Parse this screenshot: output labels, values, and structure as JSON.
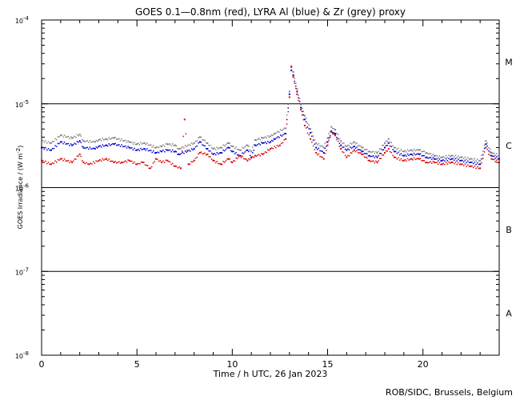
{
  "chart_data": {
    "type": "scatter",
    "title": "GOES 0.1—0.8nm (red), LYRA Al (blue) & Zr (grey) proxy",
    "xlabel": "Time / h UTC, 26 Jan 2023",
    "ylabel": "GOES Irradiance / (W m⁻²)",
    "ylabel_parts": {
      "prefix": "GOES Irradiance / (W m",
      "sup": "-2",
      "suffix": ")"
    },
    "credit": "ROB/SIDC, Brussels, Belgium",
    "xlim": [
      0,
      24
    ],
    "ylim": [
      1e-08,
      0.0001
    ],
    "yscale": "log",
    "x_ticks": [
      {
        "value": 0,
        "label": "0"
      },
      {
        "value": 5,
        "label": "5"
      },
      {
        "value": 10,
        "label": "10"
      },
      {
        "value": 15,
        "label": "15"
      },
      {
        "value": 20,
        "label": "20"
      }
    ],
    "y_ticks": [
      {
        "exp": -4,
        "base": "10",
        "sup": "-4"
      },
      {
        "exp": -5,
        "base": "10",
        "sup": "-5"
      },
      {
        "exp": -6,
        "base": "10",
        "sup": "-6"
      },
      {
        "exp": -7,
        "base": "10",
        "sup": "-7"
      },
      {
        "exp": -8,
        "base": "10",
        "sup": "-8"
      }
    ],
    "flare_classes": [
      {
        "label": "M",
        "exp": -4.5
      },
      {
        "label": "C",
        "exp": -5.5
      },
      {
        "label": "B",
        "exp": -6.5
      },
      {
        "label": "A",
        "exp": -7.5
      }
    ],
    "threshold_lines": [
      1e-05,
      1e-06,
      1e-07
    ],
    "grid": false,
    "legend": "none (colors named in title)",
    "series": [
      {
        "color": "#dd0000",
        "x": [
          0.0,
          0.5,
          1.0,
          1.6,
          2.0,
          2.2,
          2.5,
          3.0,
          3.4,
          3.8,
          4.2,
          4.6,
          5.0,
          5.3,
          5.7,
          6.0,
          6.3,
          6.6,
          7.0,
          7.3,
          7.5,
          7.7,
          8.0,
          8.3,
          8.7,
          9.0,
          9.4,
          9.8,
          10.0,
          10.4,
          10.8,
          11.2,
          11.6,
          12.0,
          12.5,
          12.8,
          13.0,
          13.1,
          13.2,
          13.4,
          13.6,
          13.8,
          14.1,
          14.4,
          14.8,
          15.0,
          15.2,
          15.4,
          15.7,
          16.0,
          16.4,
          16.8,
          17.2,
          17.6,
          18.0,
          18.2,
          18.5,
          19.0,
          19.4,
          19.8,
          20.2,
          20.6,
          21.0,
          21.5,
          22.0,
          22.5,
          23.0,
          23.3,
          23.6,
          24.0
        ],
        "y": [
          2.1e-06,
          1.9e-06,
          2.2e-06,
          2e-06,
          2.5e-06,
          2e-06,
          1.9e-06,
          2.1e-06,
          2.2e-06,
          2e-06,
          2e-06,
          2.1e-06,
          1.9e-06,
          2e-06,
          1.7e-06,
          2.2e-06,
          2e-06,
          2.1e-06,
          1.8e-06,
          1.7e-06,
          6.5e-06,
          1.9e-06,
          2.1e-06,
          2.6e-06,
          2.5e-06,
          2.1e-06,
          1.9e-06,
          2.2e-06,
          2e-06,
          2.4e-06,
          2.1e-06,
          2.4e-06,
          2.5e-06,
          2.9e-06,
          3.2e-06,
          3.8e-06,
          1.2e-05,
          2.8e-05,
          2.1e-05,
          1.3e-05,
          8.5e-06,
          5.5e-06,
          3.8e-06,
          2.6e-06,
          2.2e-06,
          3.2e-06,
          4.6e-06,
          4.2e-06,
          2.9e-06,
          2.3e-06,
          2.8e-06,
          2.5e-06,
          2.1e-06,
          2e-06,
          2.6e-06,
          2.9e-06,
          2.3e-06,
          2.1e-06,
          2.2e-06,
          2.2e-06,
          2e-06,
          2e-06,
          1.9e-06,
          2e-06,
          1.9e-06,
          1.8e-06,
          1.7e-06,
          3e-06,
          2.2e-06,
          2e-06
        ]
      },
      {
        "color": "#0000cc",
        "x": [
          0.0,
          0.5,
          1.0,
          1.6,
          2.0,
          2.2,
          2.8,
          3.0,
          3.4,
          3.8,
          4.6,
          5.0,
          5.4,
          6.0,
          6.3,
          6.6,
          7.0,
          7.2,
          8.0,
          8.3,
          8.7,
          9.0,
          9.4,
          9.8,
          10.0,
          10.4,
          10.8,
          11.0,
          11.2,
          11.6,
          12.0,
          12.2,
          12.8,
          13.0,
          13.1,
          13.2,
          13.4,
          13.6,
          13.8,
          14.1,
          14.4,
          14.8,
          15.0,
          15.2,
          15.4,
          15.7,
          16.0,
          16.4,
          16.8,
          17.2,
          17.6,
          18.0,
          18.2,
          18.5,
          19.0,
          19.4,
          19.8,
          20.2,
          20.6,
          21.0,
          21.5,
          22.0,
          22.5,
          23.0,
          23.3,
          23.6,
          24.0
        ],
        "y": [
          3e-06,
          2.8e-06,
          3.5e-06,
          3.2e-06,
          3.6e-06,
          3e-06,
          2.9e-06,
          3.1e-06,
          3.2e-06,
          3.3e-06,
          3e-06,
          2.8e-06,
          2.9e-06,
          2.6e-06,
          2.7e-06,
          2.8e-06,
          2.7e-06,
          2.5e-06,
          2.9e-06,
          3.5e-06,
          2.9e-06,
          2.5e-06,
          2.6e-06,
          3e-06,
          2.7e-06,
          2.4e-06,
          2.8e-06,
          2.3e-06,
          3.2e-06,
          3.4e-06,
          3.5e-06,
          3.8e-06,
          4.4e-06,
          1.3e-05,
          2.5e-05,
          2.2e-05,
          1.4e-05,
          9e-06,
          6.5e-06,
          4.5e-06,
          3e-06,
          2.6e-06,
          3.5e-06,
          4.7e-06,
          4.4e-06,
          3.2e-06,
          2.8e-06,
          3.1e-06,
          2.7e-06,
          2.4e-06,
          2.3e-06,
          3e-06,
          3.4e-06,
          2.7e-06,
          2.4e-06,
          2.5e-06,
          2.5e-06,
          2.3e-06,
          2.2e-06,
          2.1e-06,
          2.2e-06,
          2.1e-06,
          2e-06,
          1.9e-06,
          3.3e-06,
          2.4e-06,
          2.2e-06
        ]
      },
      {
        "color": "#808080",
        "x": [
          0.0,
          0.5,
          1.0,
          1.6,
          2.0,
          2.2,
          2.8,
          3.0,
          3.4,
          3.8,
          4.6,
          5.0,
          5.4,
          6.0,
          6.3,
          6.6,
          7.0,
          7.2,
          8.0,
          8.3,
          8.7,
          9.0,
          9.4,
          9.8,
          10.0,
          10.4,
          10.8,
          11.0,
          11.2,
          11.6,
          12.0,
          12.2,
          12.8,
          13.0,
          13.1,
          13.2,
          13.4,
          13.6,
          13.8,
          14.1,
          14.4,
          14.8,
          15.0,
          15.2,
          15.4,
          15.7,
          16.0,
          16.4,
          16.8,
          17.2,
          17.6,
          18.0,
          18.2,
          18.5,
          19.0,
          19.4,
          19.8,
          20.2,
          20.6,
          21.0,
          21.5,
          22.0,
          22.5,
          23.0,
          23.3,
          23.6,
          24.0
        ],
        "y": [
          3.6e-06,
          3.4e-06,
          4.2e-06,
          3.9e-06,
          4.3e-06,
          3.6e-06,
          3.5e-06,
          3.7e-06,
          3.8e-06,
          3.9e-06,
          3.5e-06,
          3.3e-06,
          3.4e-06,
          3e-06,
          3.1e-06,
          3.3e-06,
          3.2e-06,
          2.9e-06,
          3.4e-06,
          4e-06,
          3.4e-06,
          2.9e-06,
          3e-06,
          3.4e-06,
          3.1e-06,
          2.8e-06,
          3.2e-06,
          2.7e-06,
          3.7e-06,
          3.9e-06,
          4.1e-06,
          4.4e-06,
          5.1e-06,
          1.4e-05,
          2.7e-05,
          2.4e-05,
          1.5e-05,
          9.8e-06,
          7.2e-06,
          5e-06,
          3.4e-06,
          3e-06,
          3.9e-06,
          5.3e-06,
          4.9e-06,
          3.6e-06,
          3.1e-06,
          3.5e-06,
          3e-06,
          2.7e-06,
          2.6e-06,
          3.4e-06,
          3.8e-06,
          3e-06,
          2.7e-06,
          2.8e-06,
          2.8e-06,
          2.6e-06,
          2.4e-06,
          2.3e-06,
          2.4e-06,
          2.3e-06,
          2.2e-06,
          2.1e-06,
          3.6e-06,
          2.6e-06,
          2.4e-06
        ]
      }
    ]
  }
}
